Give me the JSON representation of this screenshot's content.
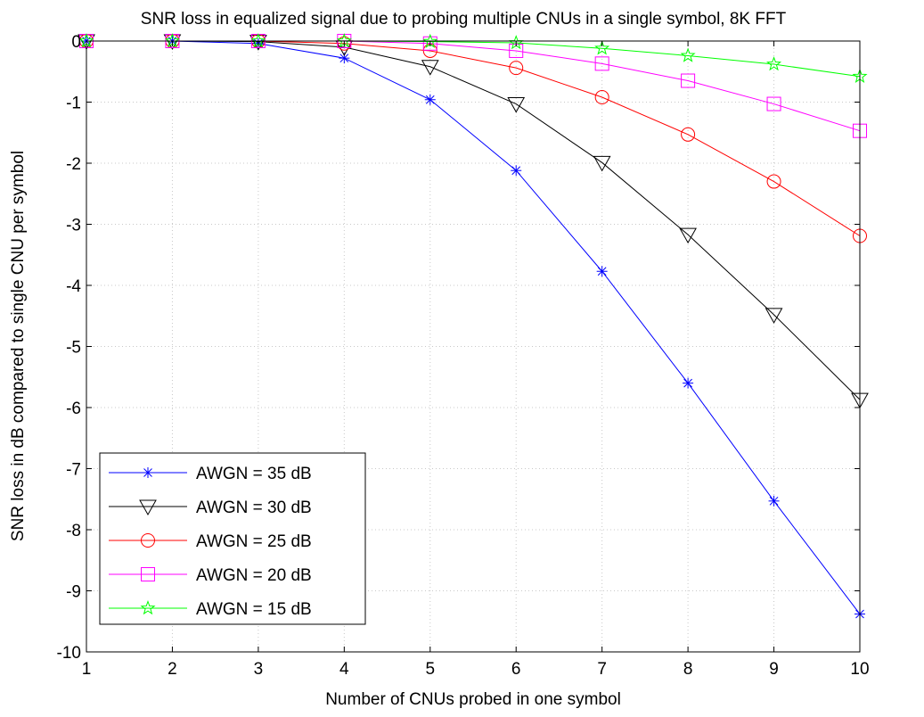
{
  "chart_data": {
    "type": "line",
    "title": "SNR loss  in equalized signal due to probing multiple CNUs in a single symbol, 8K FFT",
    "xlabel": "Number of CNUs probed in one symbol",
    "ylabel": "SNR loss in dB compared to single CNU per symbol",
    "xlim": [
      1,
      10
    ],
    "ylim": [
      -10,
      0
    ],
    "xticks": [
      1,
      2,
      3,
      4,
      5,
      6,
      7,
      8,
      9,
      10
    ],
    "yticks": [
      0,
      -1,
      -2,
      -3,
      -4,
      -5,
      -6,
      -7,
      -8,
      -9,
      -10
    ],
    "grid": true,
    "legend_position": "bottom-left",
    "x": [
      1,
      2,
      3,
      4,
      5,
      6,
      7,
      8,
      9,
      10
    ],
    "series": [
      {
        "name": "AWGN = 35 dB",
        "color": "#0000ff",
        "marker": "asterisk",
        "values": [
          0,
          0,
          -0.04,
          -0.28,
          -0.96,
          -2.12,
          -3.77,
          -5.6,
          -7.53,
          -9.38
        ]
      },
      {
        "name": "AWGN = 30 dB",
        "color": "#000000",
        "marker": "triangle-down",
        "values": [
          0,
          0,
          -0.01,
          -0.1,
          -0.42,
          -1.03,
          -1.99,
          -3.17,
          -4.48,
          -5.87
        ]
      },
      {
        "name": "AWGN = 25 dB",
        "color": "#ff0000",
        "marker": "circle",
        "values": [
          0,
          0,
          0,
          -0.04,
          -0.16,
          -0.44,
          -0.92,
          -1.53,
          -2.3,
          -3.19
        ]
      },
      {
        "name": "AWGN = 20 dB",
        "color": "#ff00ff",
        "marker": "square",
        "values": [
          0,
          0,
          0,
          0,
          -0.04,
          -0.16,
          -0.37,
          -0.65,
          -1.03,
          -1.47
        ]
      },
      {
        "name": "AWGN = 15 dB",
        "color": "#00ff00",
        "marker": "pentagram",
        "values": [
          0,
          0,
          0,
          0,
          -0.01,
          -0.03,
          -0.12,
          -0.24,
          -0.38,
          -0.58
        ]
      }
    ]
  }
}
